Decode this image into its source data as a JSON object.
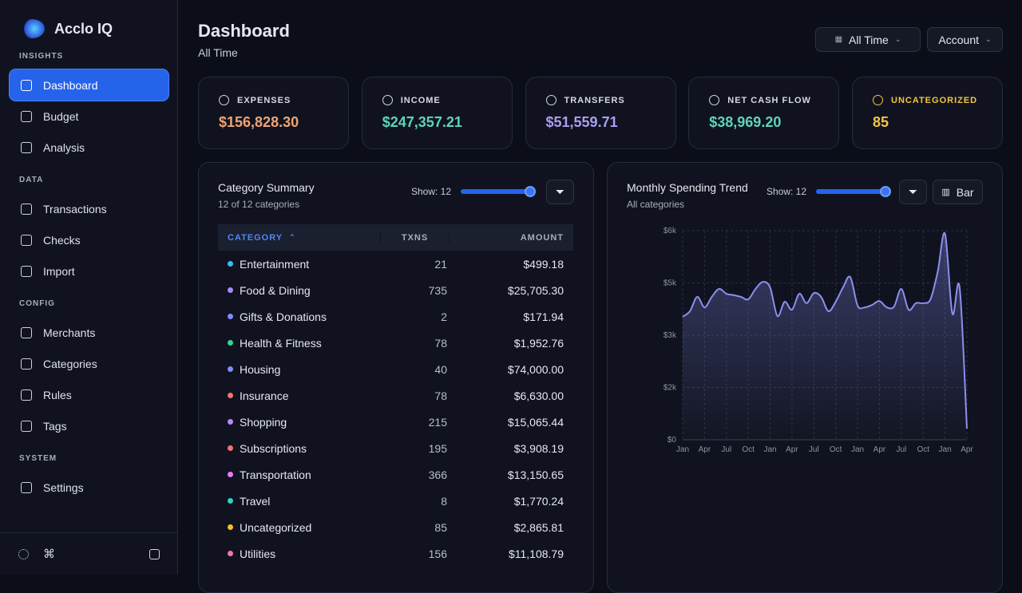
{
  "sidebar": {
    "brand": "Acclo IQ",
    "sections": [
      {
        "title": "INSIGHTS",
        "items": [
          "Dashboard",
          "Budget",
          "Analysis"
        ]
      },
      {
        "title": "DATA",
        "items": [
          "Transactions",
          "Checks",
          "Import"
        ]
      },
      {
        "title": "CONFIG",
        "items": [
          "Merchants",
          "Categories",
          "Rules",
          "Tags"
        ]
      },
      {
        "title": "SYSTEM",
        "items": [
          "Settings"
        ]
      }
    ]
  },
  "header": {
    "title": "Dashboard",
    "subtitle": "All Time",
    "filters": [
      "All Time",
      "Account"
    ]
  },
  "stats": [
    {
      "label": "EXPENSES",
      "value": "$156,828.30",
      "color": "#f2a272"
    },
    {
      "label": "INCOME",
      "value": "$247,357.21",
      "color": "#5fd4b8"
    },
    {
      "label": "TRANSFERS",
      "value": "$51,559.71",
      "color": "#a99ef2"
    },
    {
      "label": "NET CASH FLOW",
      "value": "$38,969.20",
      "color": "#5fd4b8"
    },
    {
      "label": "UNCATEGORIZED",
      "value": "85",
      "color": "#f5c542"
    }
  ],
  "category_summary": {
    "title": "Category Summary",
    "subtitle": "12 of 12 categories",
    "show_label": "Show: 12",
    "columns": [
      "CATEGORY",
      "TXNS",
      "AMOUNT"
    ],
    "rows": [
      {
        "name": "Entertainment",
        "txns": 21,
        "amount": "$499.18",
        "color": "#38bdf8"
      },
      {
        "name": "Food & Dining",
        "txns": 735,
        "amount": "$25,705.30",
        "color": "#a78bfa"
      },
      {
        "name": "Gifts & Donations",
        "txns": 2,
        "amount": "$171.94",
        "color": "#818cf8"
      },
      {
        "name": "Health & Fitness",
        "txns": 78,
        "amount": "$1,952.76",
        "color": "#34d399"
      },
      {
        "name": "Housing",
        "txns": 40,
        "amount": "$74,000.00",
        "color": "#818cf8"
      },
      {
        "name": "Insurance",
        "txns": 78,
        "amount": "$6,630.00",
        "color": "#f87171"
      },
      {
        "name": "Shopping",
        "txns": 215,
        "amount": "$15,065.44",
        "color": "#c084fc"
      },
      {
        "name": "Subscriptions",
        "txns": 195,
        "amount": "$3,908.19",
        "color": "#f87171"
      },
      {
        "name": "Transportation",
        "txns": 366,
        "amount": "$13,150.65",
        "color": "#e879f9"
      },
      {
        "name": "Travel",
        "txns": 8,
        "amount": "$1,770.24",
        "color": "#2dd4bf"
      },
      {
        "name": "Uncategorized",
        "txns": 85,
        "amount": "$2,865.81",
        "color": "#fbbf24"
      },
      {
        "name": "Utilities",
        "txns": 156,
        "amount": "$11,108.79",
        "color": "#f472b6"
      }
    ]
  },
  "spending_chart": {
    "type": "line",
    "title": "Monthly Spending Trend",
    "subtitle": "All categories",
    "show_label": "Show: 12",
    "toggle": "Bar",
    "color": "#8b8ff0",
    "categories": [
      "Jan",
      null,
      null,
      "Apr",
      null,
      null,
      "Jul",
      null,
      null,
      "Oct",
      null,
      null,
      "Jan",
      null,
      null,
      "Apr",
      null,
      null,
      "Jul",
      null,
      null,
      "Oct",
      null,
      null,
      "Jan",
      null,
      null,
      "Apr",
      null,
      null,
      "Jul",
      null,
      null,
      "Oct",
      null,
      null,
      "Jan",
      null,
      null,
      "Apr"
    ],
    "values": [
      3530,
      3690,
      4100,
      3800,
      4100,
      4330,
      4190,
      4150,
      4100,
      4030,
      4330,
      4530,
      4370,
      3550,
      3960,
      3730,
      4190,
      3920,
      4210,
      4100,
      3690,
      3960,
      4370,
      4670,
      3850,
      3800,
      3870,
      3980,
      3800,
      3820,
      4330,
      3730,
      3920,
      3920,
      4030,
      4830,
      5910,
      3620,
      4370,
      320
    ],
    "ylim": [
      0,
      6000
    ],
    "yticks": [
      {
        "value": 0,
        "label": "$0"
      },
      {
        "value": 1500,
        "label": "$2k"
      },
      {
        "value": 3000,
        "label": "$3k"
      },
      {
        "value": 4500,
        "label": "$5k"
      },
      {
        "value": 6000,
        "label": "$6k"
      }
    ],
    "grid": true
  }
}
